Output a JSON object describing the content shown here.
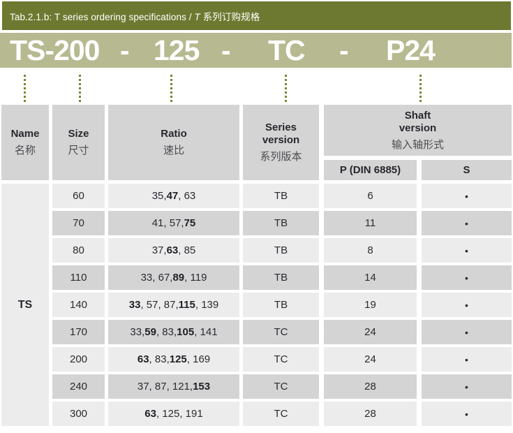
{
  "title_bar": {
    "segments": [
      {
        "text": "Tab.2.1.b: T series ordering specifications / ",
        "italic": false
      },
      {
        "text": "T ",
        "italic": true
      },
      {
        "text": "系列订购规格",
        "italic": false
      }
    ]
  },
  "order_code": {
    "segments": [
      "TS-200",
      "-",
      "125",
      "-",
      "TC",
      "-",
      "P24"
    ]
  },
  "columns": {
    "name": {
      "en": "Name",
      "zh": "名称"
    },
    "size": {
      "en": "Size",
      "zh": "尺寸"
    },
    "ratio": {
      "en": "Ratio",
      "zh": "速比"
    },
    "series": {
      "en": "Series\nversion",
      "zh": "系列版本"
    },
    "shaft": {
      "en": "Shaft\nversion",
      "zh": "输入轴形式",
      "sub": [
        "P (DIN 6885)",
        "S"
      ]
    }
  },
  "table": {
    "name_value": "TS",
    "rows": [
      {
        "size": "60",
        "ratio": "35, **47**, 63",
        "series": "TB",
        "p": "6",
        "s": "•"
      },
      {
        "size": "70",
        "ratio": "41, 57, **75**",
        "series": "TB",
        "p": "11",
        "s": "•"
      },
      {
        "size": "80",
        "ratio": "37, **63**, 85",
        "series": "TB",
        "p": "8",
        "s": "•"
      },
      {
        "size": "110",
        "ratio": "33, 67, **89**, 119",
        "series": "TB",
        "p": "14",
        "s": "•"
      },
      {
        "size": "140",
        "ratio": "**33**, 57, 87, **115**, 139",
        "series": "TB",
        "p": "19",
        "s": "•"
      },
      {
        "size": "170",
        "ratio": "33, **59**, 83, **105**, 141",
        "series": "TC",
        "p": "24",
        "s": "•"
      },
      {
        "size": "200",
        "ratio": "**63**, 83, **125**, 169",
        "series": "TC",
        "p": "24",
        "s": "•"
      },
      {
        "size": "240",
        "ratio": "37, 87, 121, **153**",
        "series": "TC",
        "p": "28",
        "s": "•"
      },
      {
        "size": "300",
        "ratio": "**63**, 125, 191",
        "series": "TC",
        "p": "28",
        "s": "•"
      }
    ]
  },
  "colors": {
    "bar_olive": "#6d7930",
    "band_sage": "#b7b990",
    "dot_olive": "#7f8230",
    "cell_dark": "#d4d4d4",
    "cell_light": "#ececec",
    "text_dark": "#29272e"
  }
}
